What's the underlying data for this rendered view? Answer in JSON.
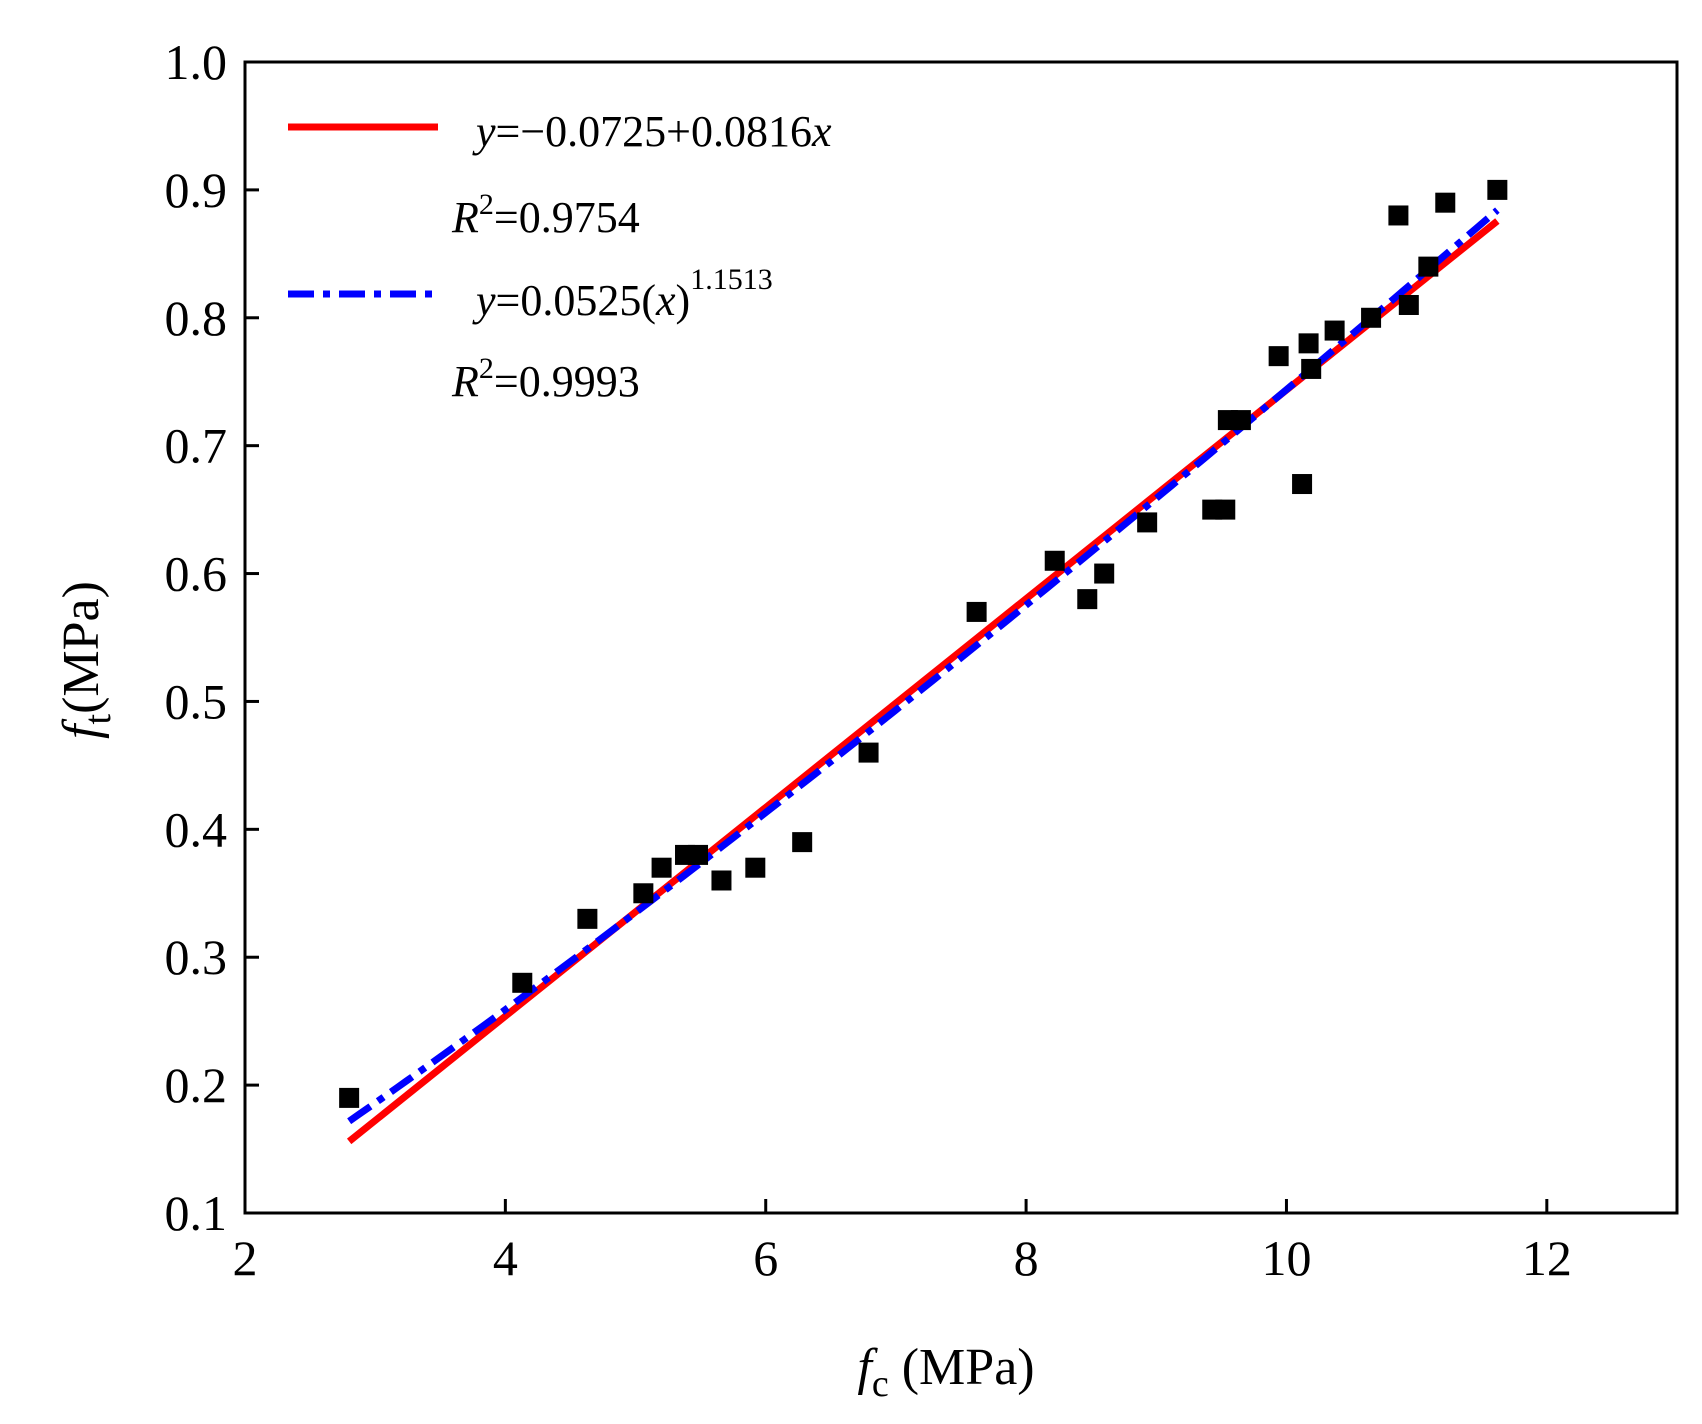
{
  "chart_data": {
    "type": "scatter",
    "xlabel": {
      "symbol": "f",
      "subscript": "c",
      "unit": " (MPa)"
    },
    "ylabel": {
      "symbol": "f",
      "subscript": "t",
      "unit": "(MPa)"
    },
    "xlim": [
      2,
      13
    ],
    "ylim": [
      0.1,
      1.0
    ],
    "xticks": [
      2,
      4,
      6,
      8,
      10,
      12
    ],
    "yticks": [
      0.1,
      0.2,
      0.3,
      0.4,
      0.5,
      0.6,
      0.7,
      0.8,
      0.9,
      1.0
    ],
    "xtick_labels": [
      "2",
      "4",
      "6",
      "8",
      "10",
      "12"
    ],
    "ytick_labels": [
      "0.1",
      "0.2",
      "0.3",
      "0.4",
      "0.5",
      "0.6",
      "0.7",
      "0.8",
      "0.9",
      "1.0"
    ],
    "grid": false,
    "legend_position": "top-left",
    "series": [
      {
        "name": "data",
        "kind": "scatter",
        "marker": "square",
        "color": "#000000",
        "x": [
          2.8,
          4.13,
          4.63,
          5.06,
          5.2,
          5.38,
          5.48,
          5.66,
          5.92,
          6.28,
          6.79,
          7.62,
          8.22,
          8.47,
          8.6,
          8.93,
          9.43,
          9.53,
          9.55,
          9.65,
          9.94,
          10.12,
          10.17,
          10.19,
          10.37,
          10.65,
          10.86,
          10.94,
          11.09,
          11.22,
          11.62
        ],
        "y": [
          0.19,
          0.28,
          0.33,
          0.35,
          0.37,
          0.38,
          0.38,
          0.36,
          0.37,
          0.39,
          0.46,
          0.57,
          0.61,
          0.58,
          0.6,
          0.64,
          0.65,
          0.65,
          0.72,
          0.72,
          0.77,
          0.67,
          0.78,
          0.76,
          0.79,
          0.8,
          0.88,
          0.81,
          0.84,
          0.89,
          0.9
        ]
      },
      {
        "name": "linear fit",
        "kind": "linear",
        "color": "#ff0000",
        "style": "solid",
        "intercept": -0.0725,
        "slope": 0.0816,
        "x_range": [
          2.8,
          11.62
        ],
        "equation": {
          "lhs": "y",
          "rhs": "=−0.0725+0.0816",
          "var": "x"
        },
        "r2": {
          "symbol": "R",
          "sup": "2",
          "value": "=0.9754"
        }
      },
      {
        "name": "power fit",
        "kind": "power",
        "color": "#0000ff",
        "style": "dash-dot",
        "coef": 0.0525,
        "exponent": 1.1513,
        "x_range": [
          2.8,
          11.62
        ],
        "equation": {
          "lhs": "y",
          "rhs": "=0.0525(",
          "var": "x",
          "close": ")",
          "sup": "1.1513"
        },
        "r2": {
          "symbol": "R",
          "sup": "2",
          "value": "=0.9993"
        }
      }
    ]
  }
}
